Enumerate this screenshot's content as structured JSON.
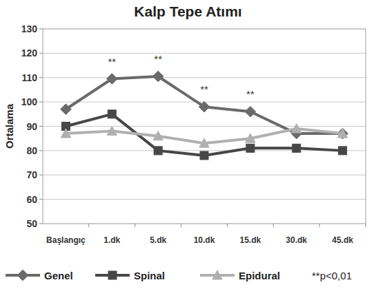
{
  "chart_data": {
    "type": "line",
    "title": "Kalp Tepe Atımı",
    "y_label": "Ortalama",
    "categories": [
      "Başlangıç",
      "1.dk",
      "5.dk",
      "10.dk",
      "15.dk",
      "30.dk",
      "45.dk"
    ],
    "series": [
      {
        "name": "Genel",
        "color": "#6a6a6a",
        "marker": "diamond",
        "values": [
          97,
          109.5,
          110.5,
          98,
          96,
          87,
          87
        ]
      },
      {
        "name": "Spinal",
        "color": "#474747",
        "marker": "square",
        "values": [
          90,
          95,
          80,
          78,
          81,
          81,
          80
        ]
      },
      {
        "name": "Epidural",
        "color": "#b0b0b0",
        "marker": "triangle",
        "values": [
          87,
          88,
          86,
          83,
          85,
          89,
          87
        ]
      }
    ],
    "annotations": [
      {
        "text": "**",
        "category": "1.dk"
      },
      {
        "text": "**",
        "category": "5.dk"
      },
      {
        "text": "**",
        "category": "10.dk"
      },
      {
        "text": "**",
        "category": "15.dk"
      }
    ],
    "footnote": "**p<0,01",
    "ylim": [
      50,
      130
    ],
    "yticks": [
      50,
      60,
      70,
      80,
      90,
      100,
      110,
      120,
      130
    ],
    "grid": true,
    "legend": "bottom"
  }
}
